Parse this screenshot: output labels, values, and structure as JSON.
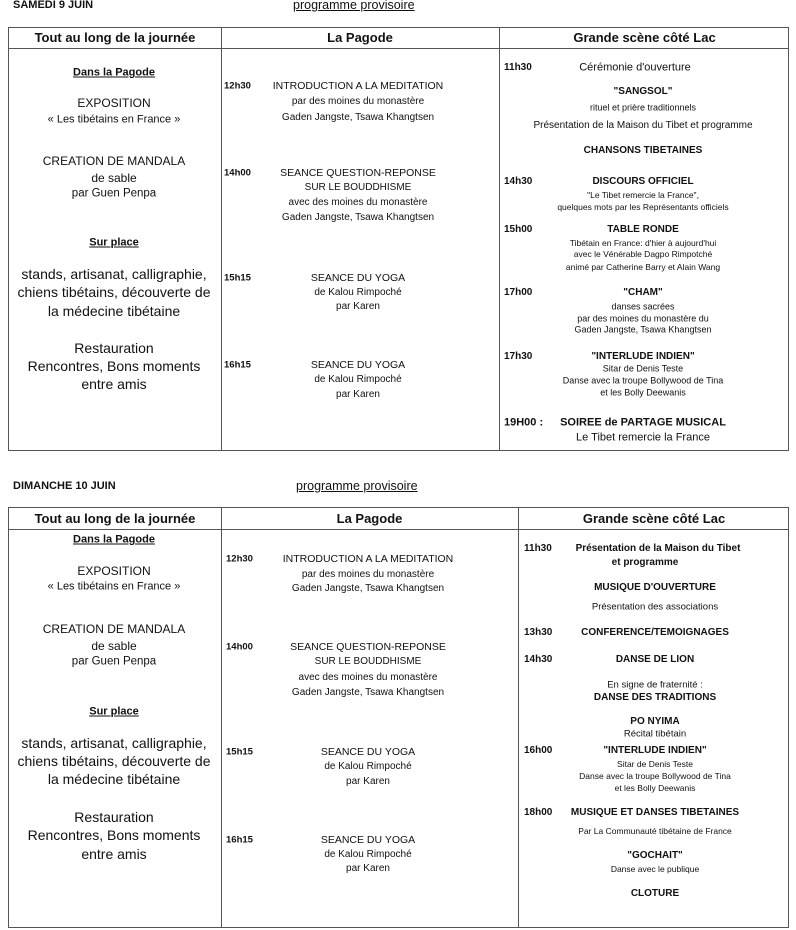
{
  "days": [
    {
      "date": "SAMEDI 9 JUIN",
      "subtitle": "programme provisoire",
      "headers": [
        "Tout au long de la journée",
        "La Pagode",
        "Grande scène côté Lac"
      ],
      "left": [
        "Dans la Pagode",
        "EXPOSITION",
        "« Les tibétains en France »",
        "CREATION DE MANDALA",
        "de sable",
        "par Guen Penpa",
        "Sur place",
        "stands, artisanat, calligraphie,",
        "chiens tibétains, découverte de",
        "la médecine tibétaine",
        "Restauration",
        "Rencontres, Bons moments",
        "entre amis"
      ],
      "middle": [
        {
          "time": "12h30",
          "text": "INTRODUCTION A LA MEDITATION"
        },
        {
          "text": "par des moines du monastère"
        },
        {
          "text": "Gaden Jangste, Tsawa Khangtsen"
        },
        {
          "time": "14h00",
          "text": "SEANCE QUESTION-REPONSE"
        },
        {
          "text": "SUR LE BOUDDHISME"
        },
        {
          "text": "avec des moines du monastère"
        },
        {
          "text": "Gaden Jangste, Tsawa Khangtsen"
        },
        {
          "time": "15h15",
          "text": "SEANCE DU YOGA"
        },
        {
          "text": "de Kalou Rimpoché"
        },
        {
          "text": "par Karen"
        },
        {
          "time": "16h15",
          "text": "SEANCE DU YOGA"
        },
        {
          "text": "de Kalou Rimpoché"
        },
        {
          "text": "par Karen"
        }
      ],
      "right": [
        {
          "time": "11h30",
          "text": "Cérémonie d'ouverture"
        },
        {
          "text": "\"SANGSOL\""
        },
        {
          "text": "rituel et prière traditionnels"
        },
        {
          "text": "Présentation de la Maison du Tibet et programme"
        },
        {
          "text": "CHANSONS TIBETAINES"
        },
        {
          "time": "14h30",
          "text": "DISCOURS OFFICIEL"
        },
        {
          "text": "\"Le Tibet remercie la France\","
        },
        {
          "text": "quelques mots par les Représentants officiels"
        },
        {
          "time": "15h00",
          "text": "TABLE RONDE"
        },
        {
          "text": "Tibétain en France: d'hier à aujourd'hui"
        },
        {
          "text": "avec le Vénérable Dagpo Rimpotché"
        },
        {
          "text": "animé par Catherine Barry et Alain Wang"
        },
        {
          "time": "17h00",
          "text": "\"CHAM\""
        },
        {
          "text": "danses sacrées"
        },
        {
          "text": "par des moines du monastère du"
        },
        {
          "text": "Gaden Jangste, Tsawa Khangtsen"
        },
        {
          "time": "17h30",
          "text": "\"INTERLUDE INDIEN\""
        },
        {
          "text": "Sitar de Denis Teste"
        },
        {
          "text": "Danse avec la troupe Bollywood de Tina"
        },
        {
          "text": "et les Bolly Deewanis"
        },
        {
          "time": "19H00 :",
          "text": "SOIREE de PARTAGE MUSICAL"
        },
        {
          "text": "Le Tibet  remercie la France"
        }
      ]
    },
    {
      "date": "DIMANCHE 10 JUIN",
      "subtitle": "programme provisoire",
      "headers": [
        "Tout au long de la journée",
        "La Pagode",
        "Grande scène côté Lac"
      ],
      "left": [
        "Dans la Pagode",
        "EXPOSITION",
        "« Les tibétains en France »",
        "CREATION DE MANDALA",
        "de sable",
        "par Guen Penpa",
        "Sur place",
        "stands, artisanat, calligraphie,",
        "chiens tibétains, découverte de",
        "la médecine tibétaine",
        "Restauration",
        "Rencontres, Bons moments",
        "entre amis"
      ],
      "middle": [
        {
          "time": "12h30",
          "text": "INTRODUCTION A LA MEDITATION"
        },
        {
          "text": "par des moines du monastère"
        },
        {
          "text": "Gaden Jangste, Tsawa Khangtsen"
        },
        {
          "time": "14h00",
          "text": "SEANCE QUESTION-REPONSE"
        },
        {
          "text": "SUR LE BOUDDHISME"
        },
        {
          "text": "avec des moines du monastère"
        },
        {
          "text": "Gaden Jangste, Tsawa Khangtsen"
        },
        {
          "time": "15h15",
          "text": "SEANCE DU YOGA"
        },
        {
          "text": "de Kalou Rimpoché"
        },
        {
          "text": "par Karen"
        },
        {
          "time": "16h15",
          "text": "SEANCE DU YOGA"
        },
        {
          "text": "de Kalou Rimpoché"
        },
        {
          "text": "par Karen"
        }
      ],
      "right": [
        {
          "time": "11h30",
          "text": "Présentation de la Maison du Tibet"
        },
        {
          "text": "et programme"
        },
        {
          "text": "MUSIQUE D'OUVERTURE"
        },
        {
          "text": "Présentation des associations"
        },
        {
          "time": "13h30",
          "text": "CONFERENCE/TEMOIGNAGES"
        },
        {
          "time": "14h30",
          "text": "DANSE DE LION"
        },
        {
          "text": "En signe de fraternité :"
        },
        {
          "text": "DANSE DES TRADITIONS"
        },
        {
          "text": "PO NYIMA"
        },
        {
          "text": "Récital tibétain"
        },
        {
          "time": "16h00",
          "text": "\"INTERLUDE INDIEN\""
        },
        {
          "text": "Sitar de Denis Teste"
        },
        {
          "text": "Danse avec la troupe Bollywood de Tina"
        },
        {
          "text": "et les Bolly Deewanis"
        },
        {
          "time": "18h00",
          "text": "MUSIQUE ET DANSES TIBETAINES"
        },
        {
          "text": "Par La Communauté tibétaine de France"
        },
        {
          "text": "\"GOCHAIT\""
        },
        {
          "text": "Danse avec le publique"
        },
        {
          "text": "CLOTURE"
        }
      ]
    }
  ]
}
